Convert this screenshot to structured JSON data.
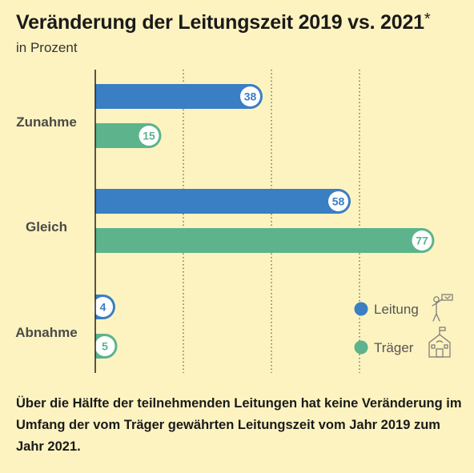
{
  "header": {
    "title": "Veränderung der Leitungszeit 2019 vs. 2021",
    "title_marker": "*",
    "subtitle": "in Prozent"
  },
  "chart_data": {
    "type": "bar",
    "orientation": "horizontal",
    "categories": [
      "Zunahme",
      "Gleich",
      "Abnahme"
    ],
    "series": [
      {
        "name": "Leitung",
        "color": "#3a7ec4",
        "icon": "person-presenting-icon",
        "values": [
          38,
          58,
          4
        ]
      },
      {
        "name": "Träger",
        "color": "#5cb38c",
        "icon": "school-building-icon",
        "values": [
          15,
          77,
          5
        ]
      }
    ],
    "xlim": [
      0,
      80
    ],
    "gridlines": [
      20,
      40,
      60
    ],
    "grid": "dotted vertical",
    "legend_position": "bottom-right"
  },
  "footnote": "Über die Hälfte der teilnehmenden Leitungen hat keine Veränderung im Umfang der vom Träger gewährten Leitungszeit vom Jahr 2019 zum Jahr 2021."
}
